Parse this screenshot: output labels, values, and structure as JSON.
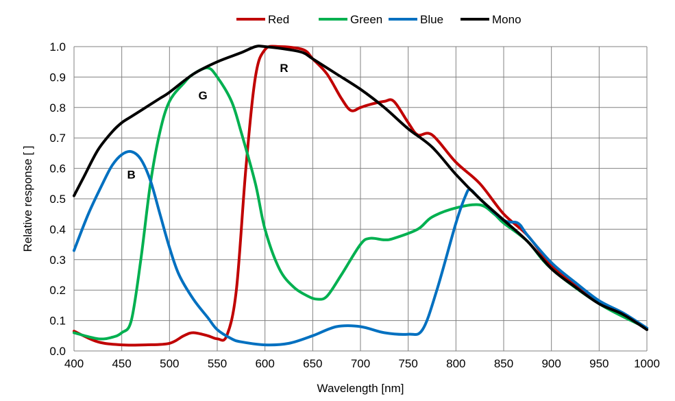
{
  "chart_data": {
    "type": "line",
    "title": "",
    "xlabel": "Wavelength [nm]",
    "ylabel": "Relative response [ ]",
    "xlim": [
      400,
      1000
    ],
    "ylim": [
      0,
      1.0
    ],
    "xticks": [
      "400",
      "450",
      "500",
      "550",
      "600",
      "650",
      "700",
      "750",
      "800",
      "850",
      "900",
      "950",
      "1000"
    ],
    "yticks": [
      "0.0",
      "0.1",
      "0.2",
      "0.3",
      "0.4",
      "0.5",
      "0.6",
      "0.7",
      "0.8",
      "0.9",
      "1.0"
    ],
    "grid": true,
    "legend_position": "top-center",
    "series": [
      {
        "name": "Red",
        "color": "#c00000",
        "x": [
          400,
          425,
          450,
          475,
          500,
          515,
          525,
          540,
          550,
          560,
          570,
          580,
          590,
          600,
          615,
          640,
          650,
          665,
          680,
          690,
          700,
          710,
          725,
          735,
          750,
          760,
          775,
          800,
          825,
          850,
          875,
          900,
          925,
          950,
          975,
          1000
        ],
        "y": [
          0.065,
          0.03,
          0.02,
          0.02,
          0.025,
          0.05,
          0.06,
          0.05,
          0.04,
          0.05,
          0.2,
          0.6,
          0.9,
          0.99,
          1.0,
          0.99,
          0.96,
          0.91,
          0.83,
          0.79,
          0.8,
          0.81,
          0.82,
          0.82,
          0.75,
          0.71,
          0.71,
          0.62,
          0.55,
          0.45,
          0.38,
          0.28,
          0.22,
          0.16,
          0.12,
          0.075
        ]
      },
      {
        "name": "Green",
        "color": "#00b050",
        "x": [
          400,
          425,
          440,
          450,
          460,
          470,
          480,
          490,
          500,
          515,
          525,
          540,
          550,
          565,
          575,
          590,
          600,
          615,
          630,
          645,
          655,
          665,
          680,
          700,
          710,
          725,
          735,
          760,
          775,
          800,
          825,
          840,
          850,
          875,
          900,
          950,
          1000
        ],
        "y": [
          0.06,
          0.04,
          0.045,
          0.06,
          0.1,
          0.3,
          0.55,
          0.72,
          0.82,
          0.88,
          0.91,
          0.93,
          0.9,
          0.82,
          0.72,
          0.55,
          0.4,
          0.27,
          0.21,
          0.18,
          0.17,
          0.18,
          0.25,
          0.35,
          0.37,
          0.365,
          0.37,
          0.4,
          0.44,
          0.47,
          0.48,
          0.45,
          0.42,
          0.36,
          0.27,
          0.155,
          0.075
        ]
      },
      {
        "name": "Blue",
        "color": "#0070c0",
        "x": [
          400,
          415,
          430,
          440,
          450,
          460,
          470,
          480,
          490,
          500,
          510,
          525,
          540,
          550,
          565,
          575,
          600,
          625,
          650,
          675,
          700,
          725,
          750,
          765,
          780,
          800,
          810,
          815,
          825,
          850,
          865,
          875,
          900,
          925,
          950,
          975,
          1000
        ],
        "y": [
          0.33,
          0.45,
          0.55,
          0.61,
          0.645,
          0.655,
          0.63,
          0.56,
          0.45,
          0.34,
          0.25,
          0.17,
          0.11,
          0.07,
          0.04,
          0.03,
          0.02,
          0.025,
          0.05,
          0.08,
          0.08,
          0.06,
          0.055,
          0.07,
          0.2,
          0.42,
          0.51,
          0.53,
          0.5,
          0.43,
          0.42,
          0.38,
          0.29,
          0.225,
          0.165,
          0.125,
          0.075
        ]
      },
      {
        "name": "Mono",
        "color": "#000000",
        "x": [
          400,
          410,
          425,
          440,
          450,
          460,
          475,
          490,
          500,
          525,
          550,
          575,
          590,
          600,
          625,
          640,
          650,
          675,
          700,
          725,
          750,
          775,
          800,
          825,
          850,
          875,
          900,
          925,
          950,
          975,
          1000
        ],
        "y": [
          0.51,
          0.57,
          0.66,
          0.72,
          0.75,
          0.77,
          0.8,
          0.83,
          0.85,
          0.91,
          0.95,
          0.98,
          1.0,
          1.0,
          0.99,
          0.98,
          0.96,
          0.91,
          0.86,
          0.8,
          0.73,
          0.67,
          0.58,
          0.5,
          0.43,
          0.36,
          0.27,
          0.21,
          0.155,
          0.12,
          0.07
        ]
      }
    ],
    "annotations": [
      {
        "text": "R",
        "x": 620,
        "y": 0.93
      },
      {
        "text": "G",
        "x": 535,
        "y": 0.84
      },
      {
        "text": "B",
        "x": 460,
        "y": 0.58
      }
    ]
  }
}
